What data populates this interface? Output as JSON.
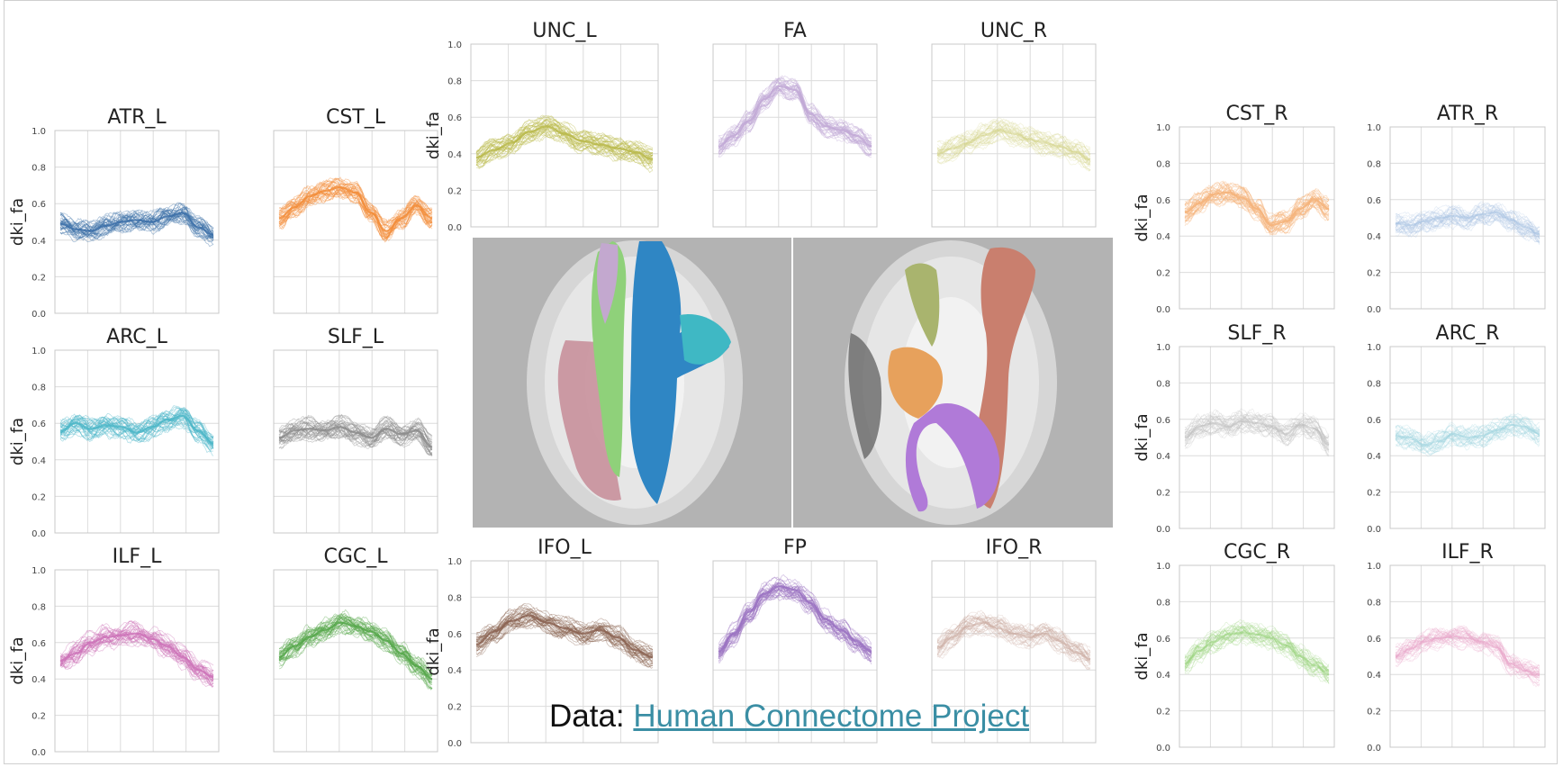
{
  "caption": {
    "prefix": "Data: ",
    "link_text": "Human Connectome Project"
  },
  "shared_axes": {
    "ylabel": "dki_fa",
    "ylim": [
      0,
      1
    ],
    "yticks": [
      "0.0",
      "0.2",
      "0.4",
      "0.6",
      "0.8",
      "1.0"
    ],
    "xticks": [],
    "grid": true
  },
  "chart_data": [
    {
      "type": "line",
      "title": "ATR_L",
      "color": "#3b6fa8",
      "light": false,
      "x": [
        0,
        10,
        20,
        30,
        40,
        50,
        60,
        70,
        80,
        90,
        100
      ],
      "values": [
        0.49,
        0.46,
        0.45,
        0.48,
        0.5,
        0.51,
        0.5,
        0.53,
        0.55,
        0.47,
        0.43
      ],
      "ylabel": "dki_fa",
      "yticks": true,
      "ylim": [
        0,
        1
      ]
    },
    {
      "type": "line",
      "title": "CST_L",
      "color": "#f28d3a",
      "light": false,
      "x": [
        0,
        10,
        20,
        30,
        40,
        50,
        60,
        70,
        80,
        90,
        100
      ],
      "values": [
        0.52,
        0.58,
        0.64,
        0.67,
        0.69,
        0.66,
        0.55,
        0.45,
        0.52,
        0.59,
        0.52
      ],
      "ylabel": "",
      "yticks": false,
      "ylim": [
        0,
        1
      ]
    },
    {
      "type": "line",
      "title": "UNC_L",
      "color": "#b9b94a",
      "light": false,
      "x": [
        0,
        10,
        20,
        30,
        40,
        50,
        60,
        70,
        80,
        90,
        100
      ],
      "values": [
        0.38,
        0.42,
        0.46,
        0.52,
        0.55,
        0.51,
        0.47,
        0.45,
        0.43,
        0.41,
        0.37
      ],
      "ylabel": "dki_fa",
      "yticks": true,
      "ylim": [
        0,
        1
      ]
    },
    {
      "type": "line",
      "title": "FA",
      "color": "#c2a9d6",
      "light": false,
      "x": [
        0,
        10,
        20,
        30,
        40,
        50,
        60,
        70,
        80,
        90,
        100
      ],
      "values": [
        0.44,
        0.5,
        0.58,
        0.7,
        0.77,
        0.75,
        0.62,
        0.55,
        0.53,
        0.5,
        0.44
      ],
      "ylabel": "",
      "yticks": false,
      "ylim": [
        0,
        1
      ]
    },
    {
      "type": "line",
      "title": "UNC_R",
      "color": "#d4d48a",
      "light": true,
      "x": [
        0,
        10,
        20,
        30,
        40,
        50,
        60,
        70,
        80,
        90,
        100
      ],
      "values": [
        0.4,
        0.43,
        0.46,
        0.5,
        0.53,
        0.51,
        0.48,
        0.46,
        0.44,
        0.41,
        0.37
      ],
      "ylabel": "",
      "yticks": false,
      "ylim": [
        0,
        1
      ]
    },
    {
      "type": "line",
      "title": "CST_R",
      "color": "#f5b37a",
      "light": false,
      "x": [
        0,
        10,
        20,
        30,
        40,
        50,
        60,
        70,
        80,
        90,
        100
      ],
      "values": [
        0.53,
        0.58,
        0.63,
        0.64,
        0.61,
        0.55,
        0.46,
        0.48,
        0.55,
        0.6,
        0.55
      ],
      "ylabel": "dki_fa",
      "yticks": true,
      "ylim": [
        0,
        1
      ]
    },
    {
      "type": "line",
      "title": "ATR_R",
      "color": "#a8c2e2",
      "light": true,
      "x": [
        0,
        10,
        20,
        30,
        40,
        50,
        60,
        70,
        80,
        90,
        100
      ],
      "values": [
        0.47,
        0.46,
        0.48,
        0.5,
        0.51,
        0.5,
        0.52,
        0.53,
        0.49,
        0.45,
        0.41
      ],
      "ylabel": "",
      "yticks": true,
      "ylim": [
        0,
        1
      ]
    },
    {
      "type": "line",
      "title": "ARC_L",
      "color": "#4bb6c7",
      "light": false,
      "x": [
        0,
        10,
        20,
        30,
        40,
        50,
        60,
        70,
        80,
        90,
        100
      ],
      "values": [
        0.56,
        0.6,
        0.57,
        0.59,
        0.58,
        0.55,
        0.58,
        0.62,
        0.64,
        0.56,
        0.49
      ],
      "ylabel": "dki_fa",
      "yticks": true,
      "ylim": [
        0,
        1
      ]
    },
    {
      "type": "line",
      "title": "SLF_L",
      "color": "#8c8c8c",
      "light": false,
      "x": [
        0,
        10,
        20,
        30,
        40,
        50,
        60,
        70,
        80,
        90,
        100
      ],
      "values": [
        0.52,
        0.56,
        0.57,
        0.56,
        0.58,
        0.55,
        0.52,
        0.57,
        0.54,
        0.56,
        0.47
      ],
      "ylabel": "",
      "yticks": false,
      "ylim": [
        0,
        1
      ]
    },
    {
      "type": "line",
      "title": "SLF_R",
      "color": "#bdbdbd",
      "light": true,
      "x": [
        0,
        10,
        20,
        30,
        40,
        50,
        60,
        70,
        80,
        90,
        100
      ],
      "values": [
        0.5,
        0.56,
        0.58,
        0.56,
        0.59,
        0.58,
        0.56,
        0.52,
        0.57,
        0.55,
        0.46
      ],
      "ylabel": "dki_fa",
      "yticks": true,
      "ylim": [
        0,
        1
      ]
    },
    {
      "type": "line",
      "title": "ARC_R",
      "color": "#9fd3df",
      "light": true,
      "x": [
        0,
        10,
        20,
        30,
        40,
        50,
        60,
        70,
        80,
        90,
        100
      ],
      "values": [
        0.51,
        0.5,
        0.46,
        0.48,
        0.52,
        0.5,
        0.51,
        0.54,
        0.57,
        0.56,
        0.52
      ],
      "ylabel": "",
      "yticks": true,
      "ylim": [
        0,
        1
      ]
    },
    {
      "type": "line",
      "title": "ILF_L",
      "color": "#cc73b8",
      "light": false,
      "x": [
        0,
        10,
        20,
        30,
        40,
        50,
        60,
        70,
        80,
        90,
        100
      ],
      "values": [
        0.5,
        0.54,
        0.6,
        0.63,
        0.64,
        0.65,
        0.62,
        0.58,
        0.52,
        0.45,
        0.41
      ],
      "ylabel": "dki_fa",
      "yticks": true,
      "ylim": [
        0,
        1
      ]
    },
    {
      "type": "line",
      "title": "CGC_L",
      "color": "#55a74a",
      "light": false,
      "x": [
        0,
        10,
        20,
        30,
        40,
        50,
        60,
        70,
        80,
        90,
        100
      ],
      "values": [
        0.52,
        0.58,
        0.63,
        0.67,
        0.71,
        0.69,
        0.66,
        0.61,
        0.54,
        0.47,
        0.4
      ],
      "ylabel": "",
      "yticks": false,
      "ylim": [
        0,
        1
      ]
    },
    {
      "type": "line",
      "title": "IFO_L",
      "color": "#8b6352",
      "light": false,
      "x": [
        0,
        10,
        20,
        30,
        40,
        50,
        60,
        70,
        80,
        90,
        100
      ],
      "values": [
        0.54,
        0.61,
        0.67,
        0.7,
        0.66,
        0.63,
        0.6,
        0.62,
        0.58,
        0.51,
        0.47
      ],
      "ylabel": "dki_fa",
      "yticks": true,
      "ylim": [
        0,
        1
      ]
    },
    {
      "type": "line",
      "title": "FP",
      "color": "#9a72c2",
      "light": false,
      "x": [
        0,
        10,
        20,
        30,
        40,
        50,
        60,
        70,
        80,
        90,
        100
      ],
      "values": [
        0.5,
        0.6,
        0.72,
        0.82,
        0.86,
        0.84,
        0.77,
        0.68,
        0.62,
        0.56,
        0.5
      ],
      "ylabel": "",
      "yticks": false,
      "ylim": [
        0,
        1
      ]
    },
    {
      "type": "line",
      "title": "IFO_R",
      "color": "#c8a89d",
      "light": true,
      "x": [
        0,
        10,
        20,
        30,
        40,
        50,
        60,
        70,
        80,
        90,
        100
      ],
      "values": [
        0.52,
        0.58,
        0.64,
        0.66,
        0.63,
        0.6,
        0.58,
        0.6,
        0.56,
        0.5,
        0.46
      ],
      "ylabel": "",
      "yticks": false,
      "ylim": [
        0,
        1
      ]
    },
    {
      "type": "line",
      "title": "CGC_R",
      "color": "#9bd37f",
      "light": true,
      "x": [
        0,
        10,
        20,
        30,
        40,
        50,
        60,
        70,
        80,
        90,
        100
      ],
      "values": [
        0.46,
        0.53,
        0.58,
        0.62,
        0.63,
        0.62,
        0.6,
        0.56,
        0.5,
        0.45,
        0.4
      ],
      "ylabel": "dki_fa",
      "yticks": true,
      "ylim": [
        0,
        1
      ]
    },
    {
      "type": "line",
      "title": "ILF_R",
      "color": "#e8a4c8",
      "light": true,
      "x": [
        0,
        10,
        20,
        30,
        40,
        50,
        60,
        70,
        80,
        90,
        100
      ],
      "values": [
        0.5,
        0.54,
        0.58,
        0.6,
        0.61,
        0.6,
        0.58,
        0.55,
        0.46,
        0.42,
        0.4
      ],
      "ylabel": "",
      "yticks": true,
      "ylim": [
        0,
        1
      ]
    }
  ]
}
